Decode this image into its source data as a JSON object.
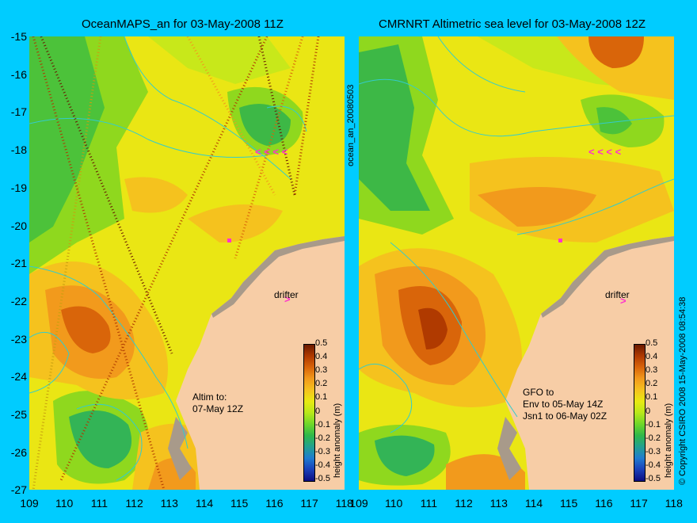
{
  "left_panel": {
    "title": "OceanMAPS_an for 03-May-2008 11Z",
    "annotation_lines": [
      "Altim to:",
      "07-May 12Z"
    ],
    "drifter_label": "drifter"
  },
  "right_panel": {
    "title": "CMRNRT Altimetric sea level  for 03-May-2008 12Z",
    "annotation_lines": [
      "GFO to",
      "Env to 05-May 14Z",
      "Jsn1 to 06-May 02Z"
    ],
    "drifter_label": "drifter"
  },
  "side_label": "ocean_an_20080503",
  "copyright": "© Copyright CSIRO 2008  15-May-2008 08:54:38",
  "y_axis_ticks": [
    "-15",
    "-16",
    "-17",
    "-18",
    "-19",
    "-20",
    "-21",
    "-22",
    "-23",
    "-24",
    "-25",
    "-26",
    "-27"
  ],
  "left_x_ticks": [
    "109",
    "110",
    "111",
    "112",
    "113",
    "114",
    "115",
    "116",
    "117",
    "118"
  ],
  "right_x_ticks": [
    "109",
    "110",
    "111",
    "112",
    "113",
    "114",
    "115",
    "116",
    "117",
    "118"
  ],
  "colorbar": {
    "label": "height anomaly (m)",
    "ticks": [
      "0.5",
      "0.4",
      "0.3",
      "0.2",
      "0.1",
      "0",
      "-0.1",
      "-0.2",
      "-0.3",
      "-0.4",
      "-0.5"
    ],
    "range": [
      -0.5,
      0.5
    ],
    "colors": [
      "#6a1a00",
      "#b03a00",
      "#d9650a",
      "#f29a1c",
      "#f5c21e",
      "#e8ea12",
      "#b8e81a",
      "#6fd62a",
      "#2fb84a",
      "#22a090",
      "#1f7bd0",
      "#1a3fb8",
      "#0d0d80"
    ]
  },
  "colors": {
    "background": "#00ccff",
    "land": "#f7cda6",
    "coast": "#a89a8a",
    "contour": "#33cccc",
    "drifter": "#ff33cc"
  }
}
